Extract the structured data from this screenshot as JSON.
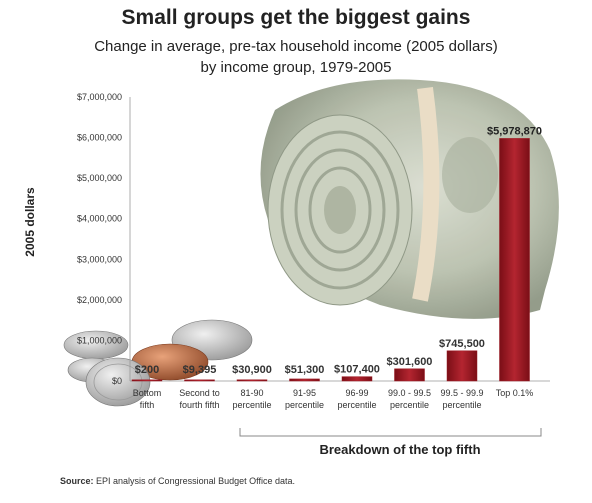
{
  "chart_data": {
    "type": "bar",
    "title": "Small groups get the biggest gains",
    "subtitle_line1": "Change in average, pre-tax household income (2005 dollars)",
    "subtitle_line2": "by income group, 1979-2005",
    "ylabel": "2005 dollars",
    "group_label": "Breakdown of the top fifth",
    "ylim": [
      0,
      7000000
    ],
    "yticks": [
      {
        "value": 0,
        "label": "$0"
      },
      {
        "value": 1000000,
        "label": "$1,000,000"
      },
      {
        "value": 2000000,
        "label": "$2,000,000"
      },
      {
        "value": 3000000,
        "label": "$3,000,000"
      },
      {
        "value": 4000000,
        "label": "$4,000,000"
      },
      {
        "value": 5000000,
        "label": "$5,000,000"
      },
      {
        "value": 6000000,
        "label": "$6,000,000"
      },
      {
        "value": 7000000,
        "label": "$7,000,000"
      }
    ],
    "categories": [
      {
        "line1": "Bottom",
        "line2": "fifth"
      },
      {
        "line1": "Second to",
        "line2": "fourth fifth"
      },
      {
        "line1": "81-90",
        "line2": "percentile"
      },
      {
        "line1": "91-95",
        "line2": "percentile"
      },
      {
        "line1": "96-99",
        "line2": "percentile"
      },
      {
        "line1": "99.0 - 99.5",
        "line2": "percentile"
      },
      {
        "line1": "99.5 - 99.9",
        "line2": "percentile"
      },
      {
        "line1": "Top 0.1%",
        "line2": ""
      }
    ],
    "values": [
      200,
      9395,
      30900,
      51300,
      107400,
      301600,
      745500,
      5978870
    ],
    "data_labels": [
      "$200",
      "$9,395",
      "$30,900",
      "$51,300",
      "$107,400",
      "$301,600",
      "$745,500",
      "$5,978,870"
    ],
    "bar_color": "#9e1b24",
    "grid": false
  },
  "source_label": "Source:",
  "source_text": "EPI analysis of Congressional Budget Office data."
}
